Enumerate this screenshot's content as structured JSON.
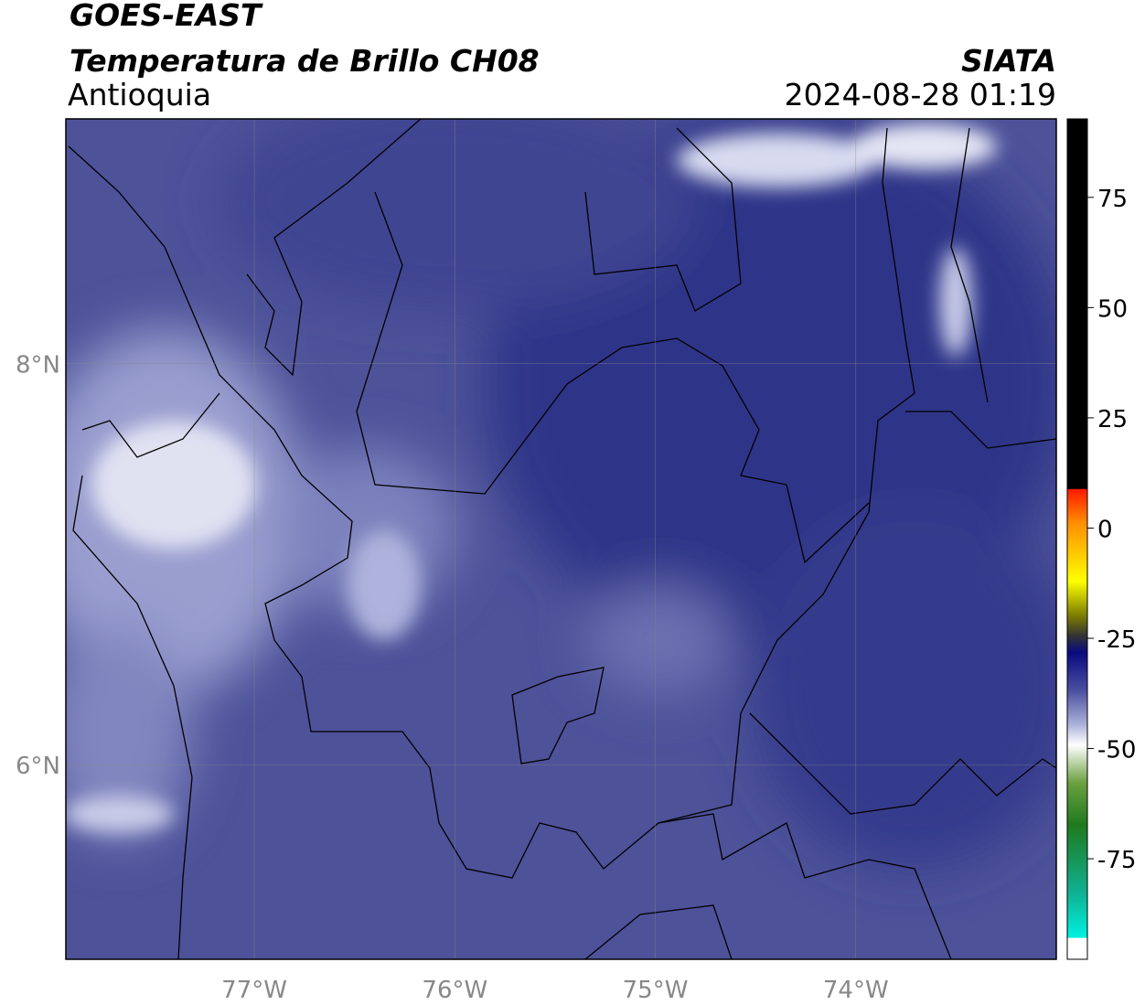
{
  "header": {
    "title": "GOES-EAST",
    "subtitle": "Temperatura de Brillo CH08",
    "region": "Antioquia",
    "agency": "SIATA",
    "timestamp": "2024-08-28 01:19"
  },
  "map": {
    "lon_range": [
      -77.94,
      -73.0
    ],
    "lat_range": [
      5.03,
      9.22
    ],
    "lon_ticks": [
      {
        "value": -77,
        "label": "77°W"
      },
      {
        "value": -76,
        "label": "76°W"
      },
      {
        "value": -75,
        "label": "75°W"
      },
      {
        "value": -74,
        "label": "74°W"
      }
    ],
    "lat_ticks": [
      {
        "value": 8,
        "label": "8°N"
      },
      {
        "value": 6,
        "label": "6°N"
      }
    ]
  },
  "colorbar": {
    "range": [
      -97.8,
      92.8
    ],
    "ticks": [
      75,
      50,
      25,
      0,
      -25,
      -50,
      -75
    ]
  }
}
